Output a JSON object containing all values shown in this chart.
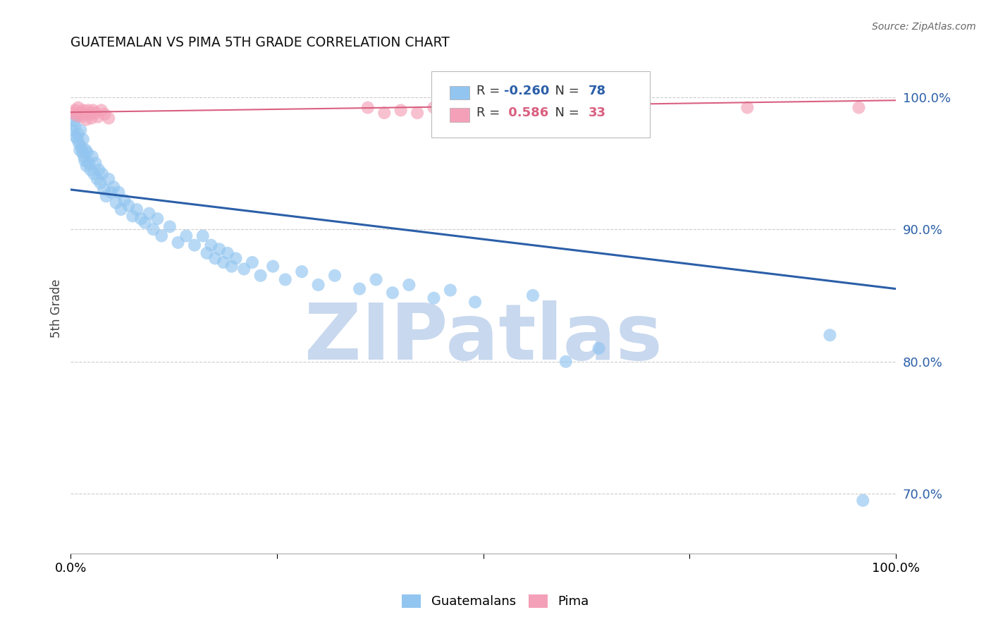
{
  "title": "GUATEMALAN VS PIMA 5TH GRADE CORRELATION CHART",
  "source": "Source: ZipAtlas.com",
  "ylabel": "5th Grade",
  "xlim": [
    0.0,
    1.0
  ],
  "ylim": [
    0.655,
    1.025
  ],
  "yticks": [
    0.7,
    0.8,
    0.9,
    1.0
  ],
  "ytick_labels": [
    "70.0%",
    "80.0%",
    "90.0%",
    "100.0%"
  ],
  "xtick_positions": [
    0.0,
    0.25,
    0.5,
    0.75,
    1.0
  ],
  "r_guatemalan": -0.26,
  "n_guatemalan": 78,
  "r_pima": 0.586,
  "n_pima": 33,
  "color_guatemalan": "#92C5F0",
  "color_pima": "#F4A0B8",
  "line_color_guatemalan": "#2B5FA8",
  "line_color_pima": "#D96080",
  "background_color": "#FFFFFF",
  "watermark": "ZIPatlas",
  "watermark_color": "#C8D8EE",
  "blue_line_y0": 0.93,
  "blue_line_y1": 0.855,
  "pink_line_y0": 0.9885,
  "pink_line_y1": 0.9975,
  "guatemalan_x": [
    0.002,
    0.004,
    0.005,
    0.006,
    0.007,
    0.008,
    0.009,
    0.01,
    0.011,
    0.012,
    0.013,
    0.014,
    0.015,
    0.016,
    0.017,
    0.018,
    0.019,
    0.02,
    0.022,
    0.024,
    0.026,
    0.028,
    0.03,
    0.032,
    0.034,
    0.036,
    0.038,
    0.04,
    0.043,
    0.046,
    0.049,
    0.052,
    0.055,
    0.058,
    0.061,
    0.065,
    0.07,
    0.075,
    0.08,
    0.085,
    0.09,
    0.095,
    0.1,
    0.105,
    0.11,
    0.12,
    0.13,
    0.14,
    0.15,
    0.16,
    0.165,
    0.17,
    0.175,
    0.18,
    0.185,
    0.19,
    0.195,
    0.2,
    0.21,
    0.22,
    0.23,
    0.245,
    0.26,
    0.28,
    0.3,
    0.32,
    0.35,
    0.37,
    0.39,
    0.41,
    0.44,
    0.46,
    0.49,
    0.56,
    0.6,
    0.64,
    0.92,
    0.96
  ],
  "guatemalan_y": [
    0.975,
    0.982,
    0.978,
    0.97,
    0.985,
    0.968,
    0.972,
    0.965,
    0.96,
    0.975,
    0.962,
    0.958,
    0.968,
    0.955,
    0.952,
    0.96,
    0.948,
    0.958,
    0.95,
    0.945,
    0.955,
    0.942,
    0.95,
    0.938,
    0.945,
    0.935,
    0.942,
    0.93,
    0.925,
    0.938,
    0.928,
    0.932,
    0.92,
    0.928,
    0.915,
    0.922,
    0.918,
    0.91,
    0.915,
    0.908,
    0.905,
    0.912,
    0.9,
    0.908,
    0.895,
    0.902,
    0.89,
    0.895,
    0.888,
    0.895,
    0.882,
    0.888,
    0.878,
    0.885,
    0.875,
    0.882,
    0.872,
    0.878,
    0.87,
    0.875,
    0.865,
    0.872,
    0.862,
    0.868,
    0.858,
    0.865,
    0.855,
    0.862,
    0.852,
    0.858,
    0.848,
    0.854,
    0.845,
    0.85,
    0.8,
    0.81,
    0.82,
    0.695
  ],
  "pima_x": [
    0.003,
    0.005,
    0.007,
    0.009,
    0.011,
    0.013,
    0.015,
    0.017,
    0.019,
    0.021,
    0.023,
    0.025,
    0.027,
    0.03,
    0.033,
    0.037,
    0.041,
    0.046,
    0.36,
    0.38,
    0.4,
    0.42,
    0.44,
    0.46,
    0.48,
    0.5,
    0.52,
    0.54,
    0.56,
    0.58,
    0.62,
    0.82,
    0.955
  ],
  "pima_y": [
    0.988,
    0.99,
    0.986,
    0.992,
    0.988,
    0.985,
    0.99,
    0.987,
    0.983,
    0.99,
    0.987,
    0.984,
    0.99,
    0.988,
    0.985,
    0.99,
    0.987,
    0.984,
    0.992,
    0.988,
    0.99,
    0.988,
    0.992,
    0.988,
    0.99,
    0.992,
    0.988,
    0.99,
    0.988,
    0.985,
    0.99,
    0.992,
    0.992
  ]
}
